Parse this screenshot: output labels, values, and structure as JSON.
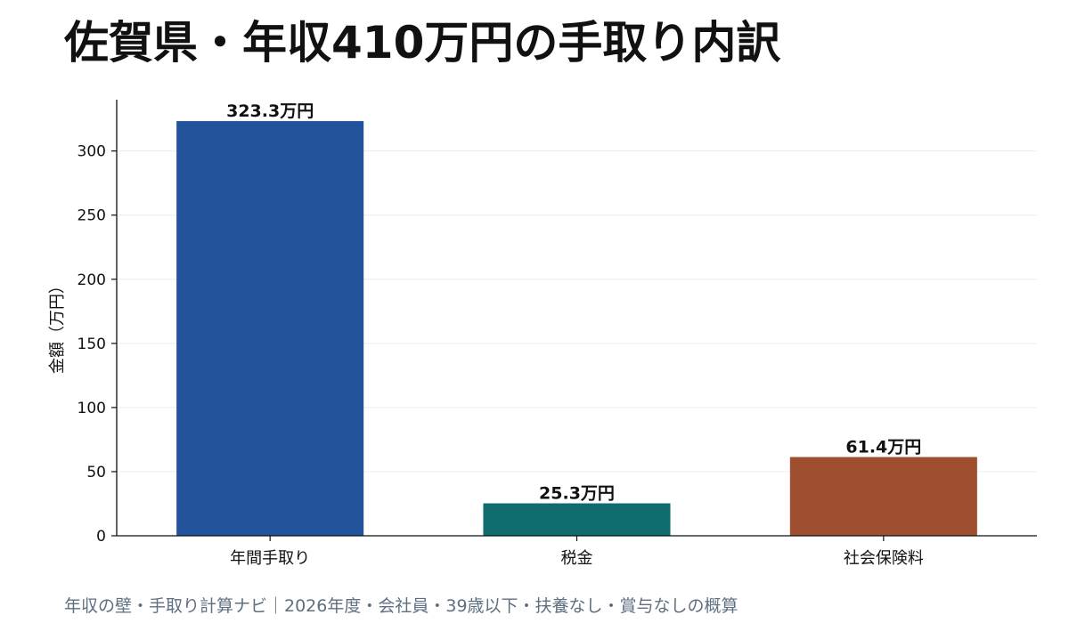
{
  "title": "佐賀県・年収410万円の手取り内訳",
  "footer": "年収の壁・手取り計算ナビ｜2026年度・会社員・39歳以下・扶養なし・賞与なしの概算",
  "chart_data": {
    "type": "bar",
    "title": "佐賀県・年収410万円の手取り内訳",
    "xlabel": "",
    "ylabel": "金額（万円）",
    "categories": [
      "年間手取り",
      "税金",
      "社会保険料"
    ],
    "values": [
      323.3,
      25.3,
      61.4
    ],
    "value_labels": [
      "323.3万円",
      "25.3万円",
      "61.4万円"
    ],
    "colors": [
      "#23539a",
      "#0e6b6e",
      "#a04e30"
    ],
    "ylim": [
      0,
      340
    ],
    "yticks": [
      0,
      50,
      100,
      150,
      200,
      250,
      300
    ],
    "grid": true,
    "legend": "none"
  }
}
